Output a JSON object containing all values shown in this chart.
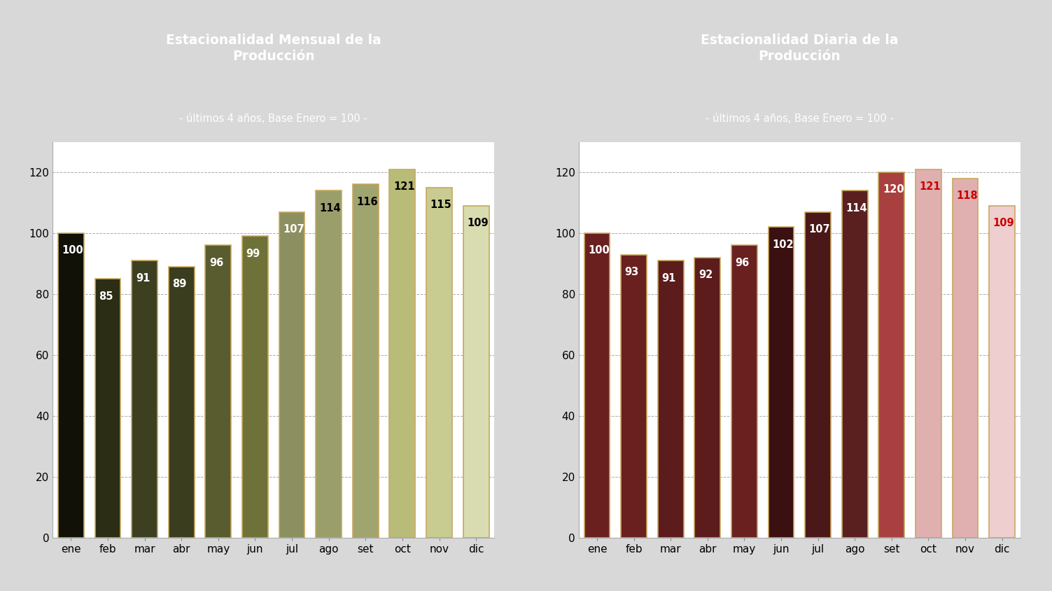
{
  "left_title": "Estacionalidad Mensual de la\nProducción",
  "right_title": "Estacionalidad Diaria de la\nProducción",
  "subtitle": "- últimos 4 años, Base Enero = 100 -",
  "months": [
    "ene",
    "feb",
    "mar",
    "abr",
    "may",
    "jun",
    "jul",
    "ago",
    "set",
    "oct",
    "nov",
    "dic"
  ],
  "left_values": [
    100,
    85,
    91,
    89,
    96,
    99,
    107,
    114,
    116,
    121,
    115,
    109
  ],
  "right_values": [
    100,
    93,
    91,
    92,
    96,
    102,
    107,
    114,
    120,
    121,
    118,
    109
  ],
  "left_colors": [
    "#111108",
    "#2b2e14",
    "#3d4020",
    "#3a3d1e",
    "#585c2e",
    "#6e7238",
    "#8c9060",
    "#9a9e6a",
    "#a0a46e",
    "#b8bc78",
    "#c8cc90",
    "#d8dcb0"
  ],
  "right_colors": [
    "#6b2020",
    "#6b2020",
    "#5c1c1c",
    "#5c1c1c",
    "#6b2020",
    "#3a1010",
    "#4a1818",
    "#5a2020",
    "#a84040",
    "#e0b0b0",
    "#e0b0b0",
    "#eecece"
  ],
  "left_label_colors": [
    "#ffffff",
    "#ffffff",
    "#ffffff",
    "#ffffff",
    "#ffffff",
    "#ffffff",
    "#ffffff",
    "#000000",
    "#000000",
    "#000000",
    "#000000",
    "#000000"
  ],
  "right_label_colors": [
    "#ffffff",
    "#ffffff",
    "#ffffff",
    "#ffffff",
    "#ffffff",
    "#ffffff",
    "#ffffff",
    "#ffffff",
    "#ffffff",
    "#cc0000",
    "#cc0000",
    "#cc0000"
  ],
  "title_bg_color": "#1c2e4a",
  "title_text_color": "#ffffff",
  "subtitle_text_color": "#ffffff",
  "bg_color": "#d8d8d8",
  "plot_bg_color": "#ffffff",
  "plot_border_color": "#aaaaaa",
  "grid_color": "#aaaaaa",
  "ylim": [
    0,
    130
  ],
  "yticks": [
    0,
    20,
    40,
    60,
    80,
    100,
    120
  ],
  "bar_edge_color": "#c8a860",
  "bar_edge_width": 1.2
}
